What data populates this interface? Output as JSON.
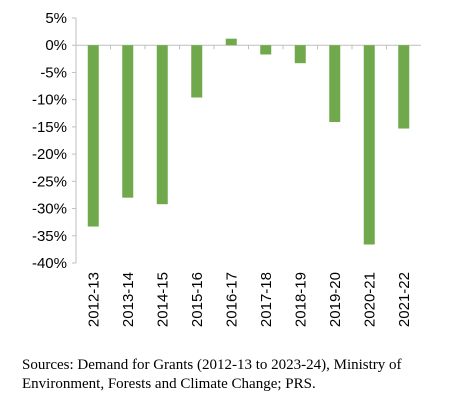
{
  "chart_data": {
    "type": "bar",
    "title": "",
    "xlabel": "",
    "ylabel": "",
    "categories": [
      "2012-13",
      "2013-14",
      "2014-15",
      "2015-16",
      "2016-17",
      "2017-18",
      "2018-19",
      "2019-20",
      "2020-21",
      "2021-22"
    ],
    "values": [
      -33.3,
      -28.0,
      -29.2,
      -9.6,
      1.2,
      -1.7,
      -3.3,
      -14.1,
      -36.6,
      -15.3
    ],
    "ylim": [
      -40,
      5
    ],
    "yticks": [
      "5%",
      "0%",
      "-5%",
      "-10%",
      "-15%",
      "-20%",
      "-25%",
      "-30%",
      "-35%",
      "-40%"
    ],
    "ytick_values": [
      5,
      0,
      -5,
      -10,
      -15,
      -20,
      -25,
      -30,
      -35,
      -40
    ],
    "grid": false,
    "legend": "none",
    "bar_color": "#70a94b",
    "axis_color": "#bfbfbf"
  },
  "source_note": "Sources: Demand for Grants (2012-13 to 2023-24), Ministry of Environment, Forests and Climate Change; PRS."
}
